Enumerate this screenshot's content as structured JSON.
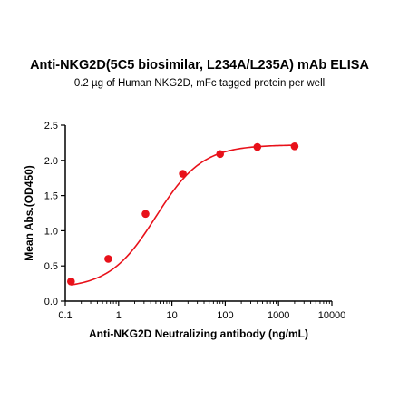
{
  "title": "Anti-NKG2D(5C5 biosimilar, L234A/L235A) mAb ELISA",
  "subtitle": "0.2 µg of Human NKG2D, mFc tagged protein per well",
  "chart_data": {
    "type": "scatter",
    "title": "Anti-NKG2D(5C5 biosimilar, L234A/L235A) mAb ELISA",
    "subtitle": "0.2 µg of Human NKG2D, mFc tagged protein per well",
    "xlabel": "Anti-NKG2D Neutralizing antibody (ng/mL)",
    "ylabel": "Mean Abs.(OD450)",
    "xscale": "log",
    "xlim": [
      0.1,
      10000
    ],
    "ylim": [
      0.0,
      2.5
    ],
    "x_ticks": [
      "0.1",
      "1",
      "10",
      "100",
      "1000",
      "10000"
    ],
    "y_ticks": [
      "0.0",
      "0.5",
      "1.0",
      "1.5",
      "2.0",
      "2.5"
    ],
    "grid": false,
    "color": "#e8111a",
    "fit": "sigmoidal",
    "series": [
      {
        "x": [
          0.128,
          0.64,
          3.2,
          16,
          80,
          400,
          2000
        ],
        "y": [
          0.28,
          0.6,
          1.24,
          1.81,
          2.09,
          2.19,
          2.2
        ]
      }
    ]
  }
}
